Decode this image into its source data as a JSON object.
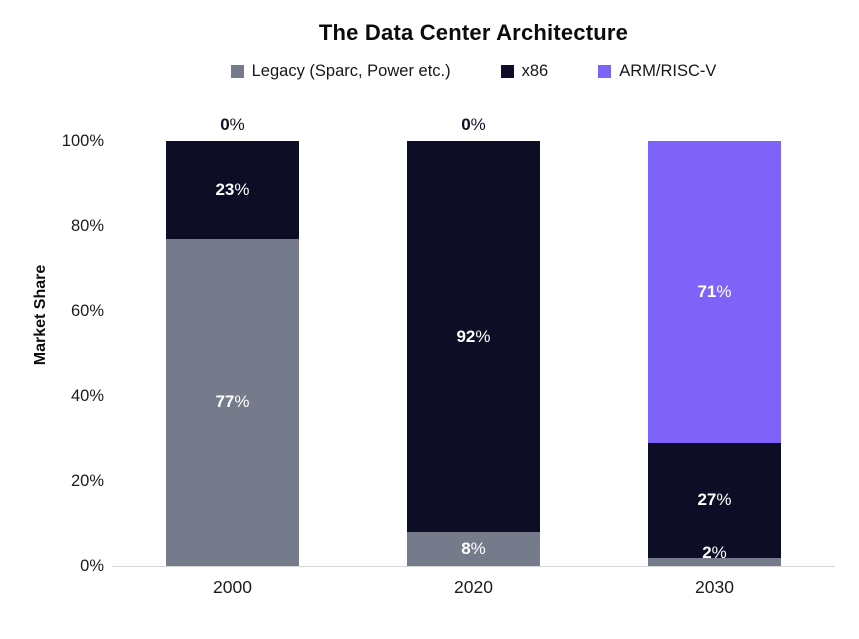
{
  "page": {
    "background": "#ffffff"
  },
  "legend": [
    {
      "label": "Legacy (Sparc, Power etc.)",
      "color": "#757b8a"
    },
    {
      "label": "x86",
      "color": "#0d0e25"
    },
    {
      "label": "ARM/RISC-V",
      "color": "#7e63f8"
    }
  ],
  "chart_data": {
    "type": "bar",
    "stacked": true,
    "title": "The Data Center Architecture",
    "xlabel": "",
    "ylabel": "Market Share",
    "ylim": [
      0,
      100
    ],
    "yticks": [
      0,
      20,
      40,
      60,
      80,
      100
    ],
    "ytick_suffix": "%",
    "grid": false,
    "legend_position": "top",
    "categories": [
      "2000",
      "2020",
      "2030"
    ],
    "series": [
      {
        "name": "Legacy (Sparc, Power etc.)",
        "color": "#757b8a",
        "values": [
          77,
          8,
          2
        ]
      },
      {
        "name": "x86",
        "color": "#0d0e25",
        "values": [
          23,
          92,
          27
        ]
      },
      {
        "name": "ARM/RISC-V",
        "color": "#7e63f8",
        "values": [
          0,
          0,
          71
        ]
      }
    ],
    "above_bar_labels": [
      "0%",
      "0%",
      ""
    ],
    "bar_label_suffix": "%",
    "axis_line_color": "#d6d6d6",
    "label_color_inside": "#ffffff",
    "label_color_above": "#101124"
  }
}
